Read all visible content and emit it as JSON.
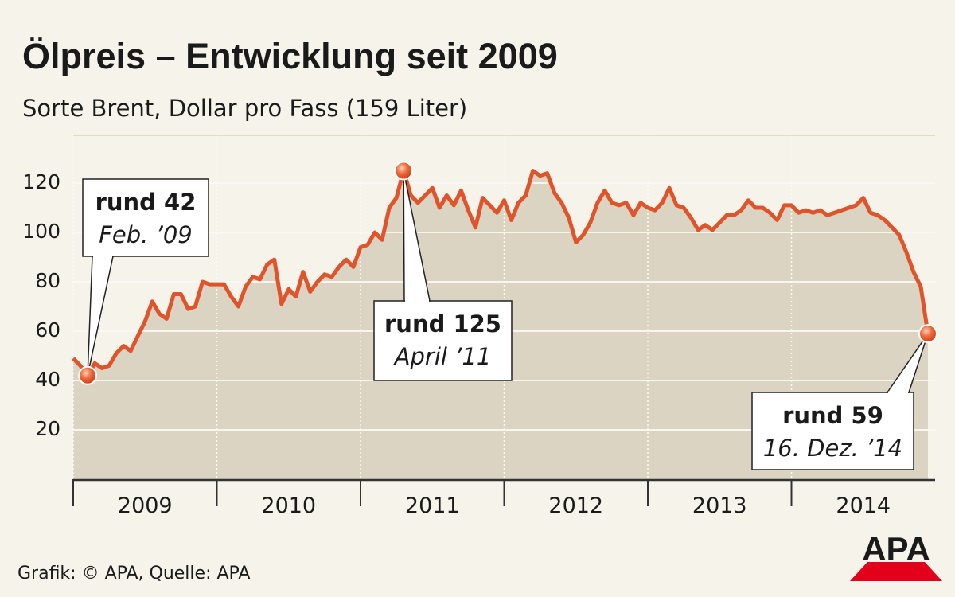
{
  "chart_data": {
    "type": "line",
    "title": "Ölpreis – Entwicklung seit 2009",
    "subtitle": "Sorte Brent, Dollar pro Fass (159 Liter)",
    "x": [
      2009,
      2009.05,
      2009.1,
      2009.15,
      2009.2,
      2009.25,
      2009.3,
      2009.35,
      2009.4,
      2009.45,
      2009.5,
      2009.55,
      2009.6,
      2009.65,
      2009.7,
      2009.75,
      2009.8,
      2009.85,
      2009.9,
      2009.95,
      2010,
      2010.05,
      2010.1,
      2010.15,
      2010.2,
      2010.25,
      2010.3,
      2010.35,
      2010.4,
      2010.45,
      2010.5,
      2010.55,
      2010.6,
      2010.65,
      2010.7,
      2010.75,
      2010.8,
      2010.85,
      2010.9,
      2010.95,
      2011,
      2011.05,
      2011.1,
      2011.15,
      2011.2,
      2011.25,
      2011.3,
      2011.35,
      2011.4,
      2011.45,
      2011.5,
      2011.55,
      2011.6,
      2011.65,
      2011.7,
      2011.75,
      2011.8,
      2011.85,
      2011.9,
      2011.95,
      2012,
      2012.05,
      2012.1,
      2012.15,
      2012.2,
      2012.25,
      2012.3,
      2012.35,
      2012.4,
      2012.45,
      2012.5,
      2012.55,
      2012.6,
      2012.65,
      2012.7,
      2012.75,
      2012.8,
      2012.85,
      2012.9,
      2012.95,
      2013,
      2013.05,
      2013.1,
      2013.15,
      2013.2,
      2013.25,
      2013.3,
      2013.35,
      2013.4,
      2013.45,
      2013.5,
      2013.55,
      2013.6,
      2013.65,
      2013.7,
      2013.75,
      2013.8,
      2013.85,
      2013.9,
      2013.95,
      2014,
      2014.05,
      2014.1,
      2014.15,
      2014.2,
      2014.25,
      2014.3,
      2014.35,
      2014.4,
      2014.45,
      2014.5,
      2014.55,
      2014.6,
      2014.65,
      2014.7,
      2014.75,
      2014.8,
      2014.85,
      2014.9,
      2014.95
    ],
    "series": [
      {
        "color": "#e0542c",
        "values": [
          49,
          46,
          42,
          47,
          45,
          46,
          51,
          54,
          52,
          58,
          64,
          72,
          67,
          65,
          75,
          75,
          69,
          70,
          80,
          79,
          79,
          79,
          74,
          70,
          78,
          82,
          81,
          87,
          89,
          71,
          77,
          74,
          84,
          76,
          80,
          83,
          82,
          86,
          89,
          86,
          94,
          95,
          100,
          97,
          110,
          114,
          125,
          115,
          112,
          115,
          118,
          110,
          115,
          111,
          117,
          109,
          102,
          114,
          111,
          108,
          113,
          105,
          112,
          115,
          125,
          123,
          124,
          116,
          112,
          106,
          96,
          99,
          104,
          112,
          117,
          112,
          111,
          112,
          107,
          112,
          110,
          109,
          112,
          118,
          111,
          110,
          106,
          101,
          103,
          101,
          104,
          107,
          107,
          109,
          113,
          110,
          110,
          108,
          105,
          111,
          111,
          108,
          109,
          108,
          109,
          107,
          108,
          109,
          110,
          111,
          114,
          108,
          107,
          105,
          102,
          99,
          92,
          84,
          78,
          59
        ]
      }
    ],
    "xlim": [
      2009,
      2015
    ],
    "xticks": [
      2009,
      2010,
      2011,
      2012,
      2013,
      2014
    ],
    "ylim": [
      0,
      140
    ],
    "yticks": [
      20,
      40,
      60,
      80,
      100,
      120
    ],
    "grid": true,
    "annotations": [
      {
        "label": "rund 42",
        "date": "Feb. ’09",
        "x": 2009.1,
        "value": 42
      },
      {
        "label": "rund 125",
        "date": "April ’11",
        "x": 2011.3,
        "value": 125
      },
      {
        "label": "rund 59",
        "date": "16. Dez. ’14",
        "x": 2014.95,
        "value": 59
      }
    ],
    "footer": "Grafik: © APA, Quelle: APA",
    "logo": "APA"
  }
}
